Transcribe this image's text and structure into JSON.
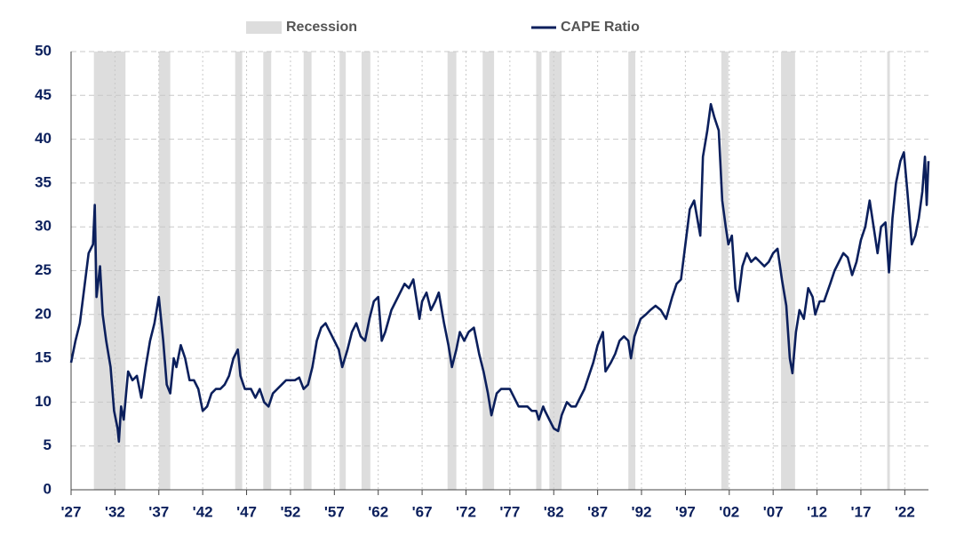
{
  "chart_data": {
    "type": "line",
    "recession_label": "Recession",
    "recession_color": "#dddddd",
    "recessions": [
      [
        1929.6,
        1933.2
      ],
      [
        1937.0,
        1938.3
      ],
      [
        1945.7,
        1946.5
      ],
      [
        1948.9,
        1949.8
      ],
      [
        1953.5,
        1954.4
      ],
      [
        1957.6,
        1958.3
      ],
      [
        1960.1,
        1961.1
      ],
      [
        1969.9,
        1970.9
      ],
      [
        1973.9,
        1975.2
      ],
      [
        1980.0,
        1980.6
      ],
      [
        1981.5,
        1982.9
      ],
      [
        1990.5,
        1991.3
      ],
      [
        2001.1,
        2001.9
      ],
      [
        2007.9,
        2009.5
      ],
      [
        2020.0,
        2020.3
      ]
    ],
    "xlim": [
      1927,
      2024.7
    ],
    "ylim": [
      0,
      50
    ],
    "yticks": [
      0,
      5,
      10,
      15,
      20,
      25,
      30,
      35,
      40,
      45,
      50
    ],
    "xticks": [
      {
        "value": 1927,
        "label": "'27"
      },
      {
        "value": 1932,
        "label": "'32"
      },
      {
        "value": 1937,
        "label": "'37"
      },
      {
        "value": 1942,
        "label": "'42"
      },
      {
        "value": 1947,
        "label": "'47"
      },
      {
        "value": 1952,
        "label": "'52"
      },
      {
        "value": 1957,
        "label": "'57"
      },
      {
        "value": 1962,
        "label": "'62"
      },
      {
        "value": 1967,
        "label": "'67"
      },
      {
        "value": 1972,
        "label": "'72"
      },
      {
        "value": 1977,
        "label": "'77"
      },
      {
        "value": 1982,
        "label": "'82"
      },
      {
        "value": 1987,
        "label": "'87"
      },
      {
        "value": 1992,
        "label": "'92"
      },
      {
        "value": 1997,
        "label": "'97"
      },
      {
        "value": 2002,
        "label": "'02"
      },
      {
        "value": 2007,
        "label": "'07"
      },
      {
        "value": 2012,
        "label": "'12"
      },
      {
        "value": 2017,
        "label": "'17"
      },
      {
        "value": 2022,
        "label": "'22"
      }
    ],
    "grid": true,
    "x": [
      1927.0,
      1927.5,
      1928,
      1928.5,
      1929,
      1929.5,
      1929.7,
      1929.9,
      1930.3,
      1930.6,
      1931,
      1931.5,
      1931.9,
      1932.3,
      1932.45,
      1932.7,
      1933.0,
      1933.5,
      1934,
      1934.5,
      1935,
      1935.5,
      1936,
      1936.5,
      1937,
      1937.5,
      1937.9,
      1938.3,
      1938.7,
      1939,
      1939.5,
      1940,
      1940.5,
      1941,
      1941.5,
      1942,
      1942.5,
      1943,
      1943.5,
      1944,
      1944.5,
      1945,
      1945.5,
      1946,
      1946.3,
      1946.8,
      1947.5,
      1948,
      1948.5,
      1949,
      1949.5,
      1950,
      1950.5,
      1951,
      1951.5,
      1952,
      1952.5,
      1953,
      1953.5,
      1954,
      1954.5,
      1955,
      1955.5,
      1956,
      1956.5,
      1957,
      1957.5,
      1957.9,
      1958.5,
      1959,
      1959.5,
      1960,
      1960.5,
      1961,
      1961.5,
      1962,
      1962.4,
      1962.8,
      1963.5,
      1964,
      1964.5,
      1965,
      1965.5,
      1966,
      1966.7,
      1967,
      1967.5,
      1968,
      1968.5,
      1968.9,
      1969.5,
      1970,
      1970.4,
      1970.9,
      1971.3,
      1971.8,
      1972.3,
      1972.9,
      1973.5,
      1974,
      1974.5,
      1974.9,
      1975.5,
      1976,
      1976.5,
      1977,
      1977.5,
      1978,
      1978.5,
      1979,
      1979.5,
      1980,
      1980.3,
      1980.8,
      1981,
      1981.5,
      1982,
      1982.5,
      1982.9,
      1983.5,
      1984,
      1984.5,
      1985,
      1985.5,
      1986,
      1986.5,
      1987,
      1987.6,
      1987.9,
      1988.5,
      1989,
      1989.5,
      1990,
      1990.5,
      1990.8,
      1991.2,
      1991.9,
      1992.5,
      1993,
      1993.6,
      1994.2,
      1994.8,
      1995.5,
      1996,
      1996.5,
      1997,
      1997.5,
      1998,
      1998.7,
      1999,
      1999.5,
      1999.9,
      2000.3,
      2000.8,
      2001.2,
      2001.6,
      2001.9,
      2002.3,
      2002.7,
      2003,
      2003.5,
      2004,
      2004.5,
      2005,
      2005.5,
      2006,
      2006.5,
      2007,
      2007.5,
      2008,
      2008.5,
      2008.9,
      2009.2,
      2009.6,
      2010,
      2010.5,
      2011,
      2011.5,
      2011.8,
      2012.3,
      2012.8,
      2013.5,
      2014,
      2014.5,
      2015,
      2015.5,
      2016,
      2016.5,
      2017,
      2017.5,
      2018,
      2018.3,
      2018.9,
      2019.3,
      2019.8,
      2020.2,
      2020.6,
      2021,
      2021.5,
      2021.9,
      2022.3,
      2022.8,
      2023.2,
      2023.6,
      2024,
      2024.3,
      2024.5,
      2024.7
    ],
    "series": [
      {
        "name": "CAPE Ratio",
        "color": "#0b1f5c",
        "values": [
          14.5,
          17,
          19,
          23,
          27,
          28,
          32.5,
          22,
          25.5,
          20,
          17,
          14,
          9,
          7,
          5.5,
          9.5,
          8,
          13.5,
          12.5,
          13,
          10.5,
          14,
          17,
          19,
          22,
          17,
          12,
          11,
          15,
          14,
          16.5,
          15,
          12.5,
          12.5,
          11.5,
          9,
          9.5,
          11,
          11.5,
          11.5,
          12,
          13,
          15,
          16,
          13,
          11.5,
          11.5,
          10.5,
          11.5,
          10,
          9.5,
          11,
          11.5,
          12,
          12.5,
          12.5,
          12.5,
          12.8,
          11.5,
          12,
          14,
          17,
          18.5,
          19,
          18,
          17,
          16,
          14,
          16,
          18,
          19,
          17.5,
          17,
          19.5,
          21.5,
          22,
          17,
          18,
          20.5,
          21.5,
          22.5,
          23.5,
          23,
          24,
          19.5,
          21.5,
          22.5,
          20.5,
          21.5,
          22.5,
          19,
          16.5,
          14,
          16,
          18,
          17,
          18,
          18.5,
          15.5,
          13.5,
          11,
          8.5,
          11,
          11.5,
          11.5,
          11.5,
          10.5,
          9.5,
          9.5,
          9.5,
          9,
          9,
          8,
          9.5,
          9,
          8,
          7,
          6.7,
          8.5,
          10,
          9.5,
          9.5,
          10.5,
          11.5,
          13,
          14.5,
          16.5,
          18,
          13.5,
          14.5,
          15.5,
          17,
          17.5,
          17,
          15,
          17.5,
          19.5,
          20,
          20.5,
          21,
          20.5,
          19.5,
          22,
          23.5,
          24,
          28,
          32,
          33,
          29,
          38,
          41,
          44,
          42.5,
          41,
          33,
          30,
          28,
          29,
          23,
          21.5,
          25.5,
          27,
          26,
          26.5,
          26,
          25.5,
          26,
          27,
          27.5,
          24,
          21,
          15,
          13.3,
          18,
          20.5,
          19.5,
          23,
          22,
          20,
          21.5,
          21.5,
          23.5,
          25,
          26,
          27,
          26.5,
          24.5,
          26,
          28.5,
          30,
          33,
          31,
          27,
          30,
          30.5,
          24.8,
          31,
          35,
          37.5,
          38.5,
          34,
          28,
          29,
          31,
          34,
          38,
          32.5,
          37.5
        ]
      }
    ]
  }
}
